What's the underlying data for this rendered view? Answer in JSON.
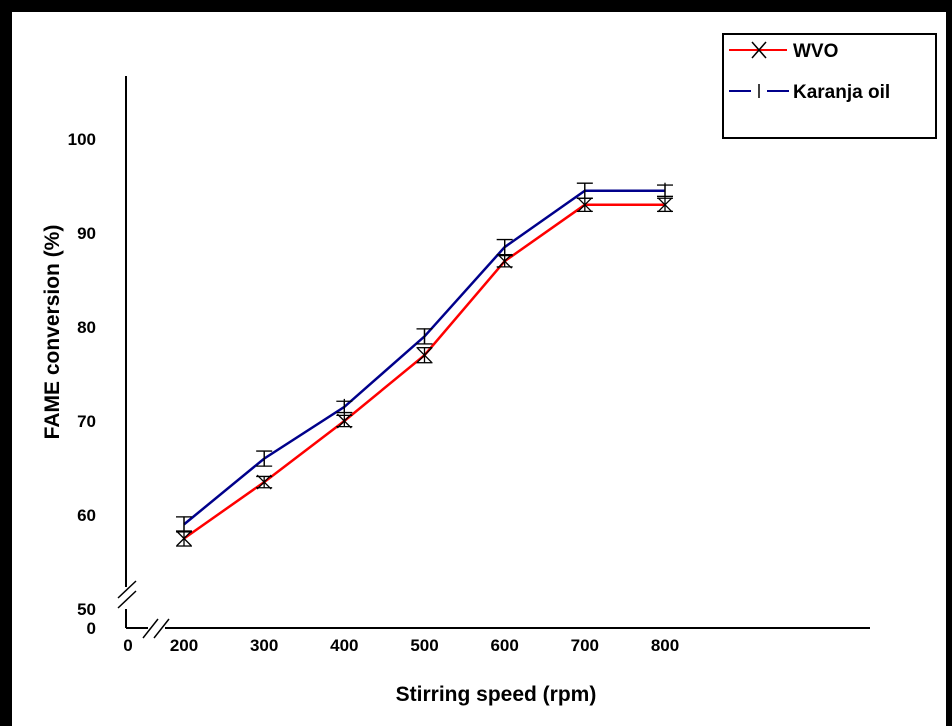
{
  "chart_data": {
    "type": "line",
    "xlabel": "Stirring speed (rpm)",
    "ylabel": "FAME conversion (%)",
    "x": [
      200,
      300,
      400,
      500,
      600,
      700,
      800
    ],
    "x_tick_labels": [
      "200",
      "300",
      "400",
      "500",
      "600",
      "700",
      "800"
    ],
    "x_origin_label": "0",
    "y_tick_labels": [
      "0",
      "50",
      "60",
      "70",
      "80",
      "90",
      "100"
    ],
    "ylim": [
      50,
      100
    ],
    "axis_break": true,
    "grid": false,
    "legend_position": "top-right",
    "series": [
      {
        "name": "WVO",
        "color": "#ff0000",
        "marker": "x",
        "values": [
          57.5,
          63.5,
          70.0,
          77.0,
          87.0,
          93.0,
          93.0
        ],
        "error": [
          0.8,
          0.6,
          0.6,
          0.8,
          0.6,
          0.7,
          0.7
        ]
      },
      {
        "name": "Karanja oil",
        "color": "#00008b",
        "marker": "|",
        "values": [
          59.0,
          66.0,
          71.5,
          79.0,
          88.5,
          94.5,
          94.5
        ],
        "error": [
          0.8,
          0.8,
          0.6,
          0.8,
          0.8,
          0.8,
          0.6
        ]
      }
    ]
  }
}
